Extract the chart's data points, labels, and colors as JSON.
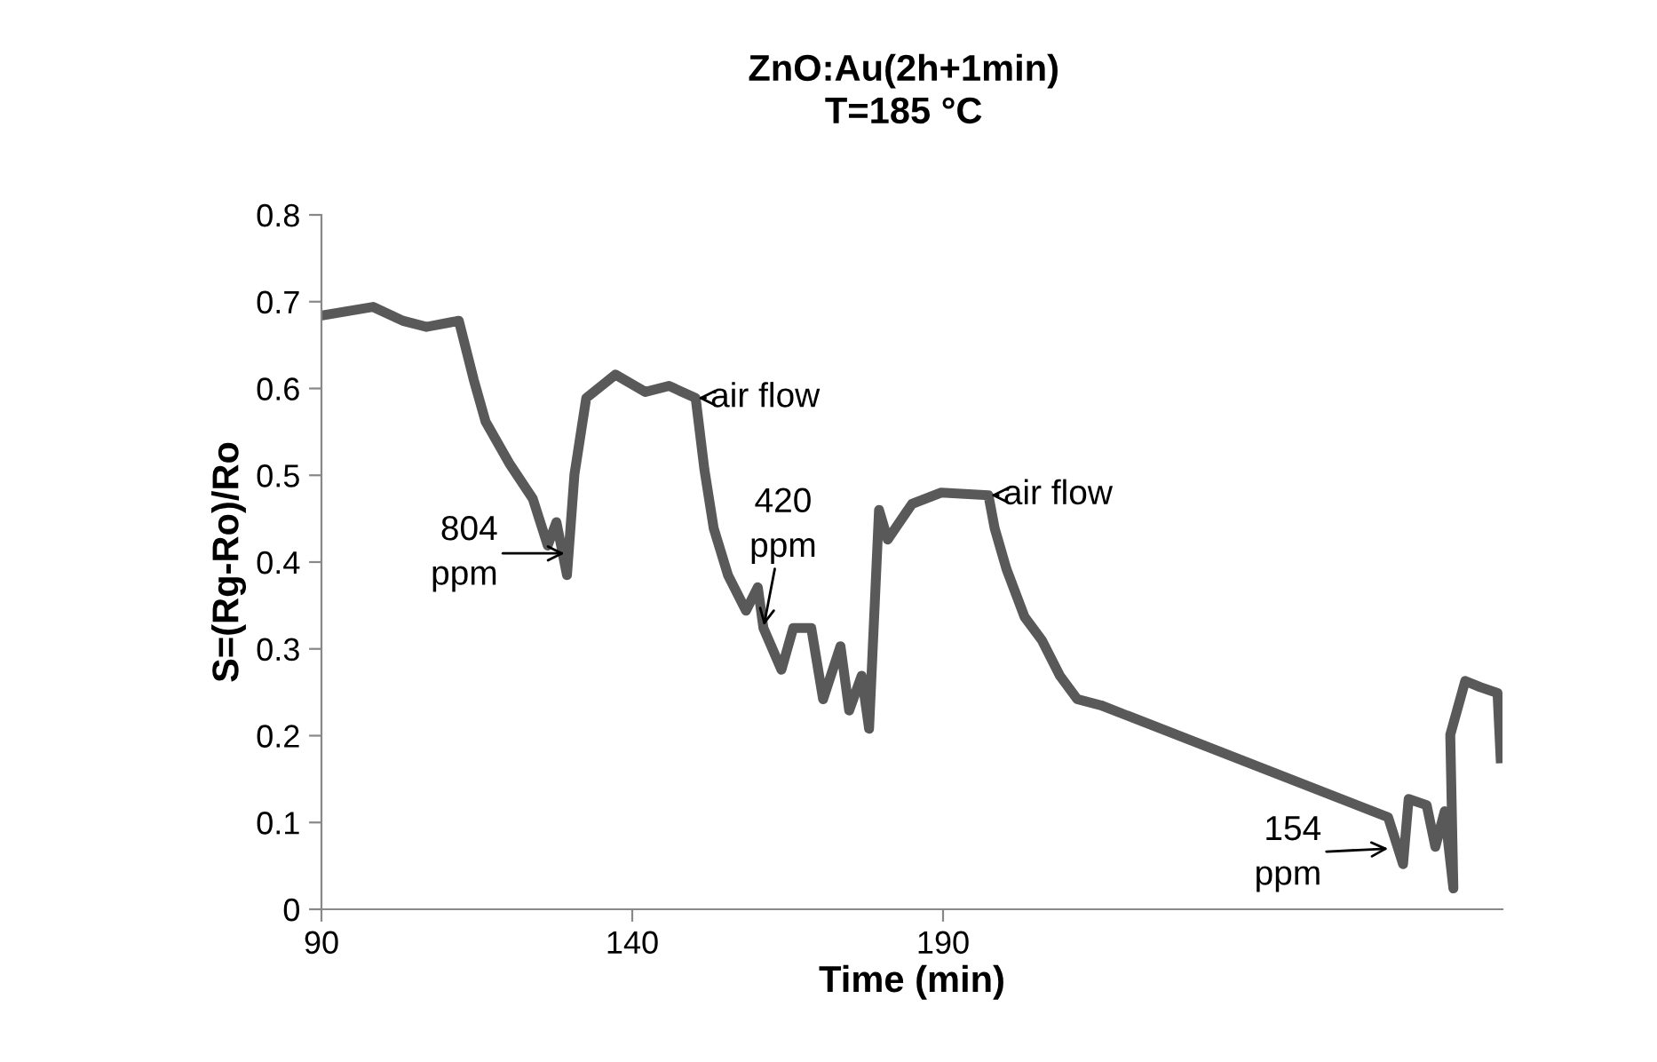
{
  "chart_data": {
    "type": "line",
    "title": "ZnO:Au(2h+1min)\nT=185 °C",
    "xlabel": "Time (min)",
    "ylabel": "S=(Rg-Ro)/Ro",
    "x": [
      90,
      98.3,
      103.1,
      106.9,
      112.1,
      114.5,
      116.4,
      120.2,
      124,
      126.4,
      127.8,
      129.5,
      130.7,
      132.6,
      137.3,
      142.1,
      145.9,
      150.2,
      151.6,
      153.1,
      155.4,
      158.3,
      160.2,
      161.1,
      164,
      165.9,
      168.8,
      170.7,
      173.5,
      174.9,
      176.9,
      178.1,
      179.7,
      181.1,
      185,
      189.7,
      197.3,
      198.3,
      200.2,
      203.1,
      205.9,
      208.8,
      211.6,
      215.4,
      261.6,
      264,
      264.9,
      267.8,
      269.2,
      270.7,
      272.1,
      271.6,
      274,
      276.4,
      279.2,
      279.7
    ],
    "values": [
      0.684,
      0.694,
      0.678,
      0.671,
      0.678,
      0.61,
      0.562,
      0.514,
      0.473,
      0.419,
      0.446,
      0.385,
      0.501,
      0.589,
      0.616,
      0.596,
      0.603,
      0.589,
      0.507,
      0.439,
      0.385,
      0.344,
      0.371,
      0.324,
      0.276,
      0.324,
      0.324,
      0.242,
      0.303,
      0.229,
      0.269,
      0.208,
      0.46,
      0.426,
      0.467,
      0.48,
      0.477,
      0.439,
      0.392,
      0.337,
      0.31,
      0.269,
      0.242,
      0.235,
      0.106,
      0.052,
      0.127,
      0.12,
      0.072,
      0.113,
      0.024,
      0.201,
      0.263,
      0.256,
      0.249,
      0.174
    ],
    "color": "#595959",
    "xlim": [
      90,
      280
    ],
    "xticks": [
      90,
      140,
      190
    ],
    "ylim": [
      0,
      0.8
    ],
    "yticks": [
      0,
      0.1,
      0.2,
      0.3,
      0.4,
      0.5,
      0.6,
      0.7,
      0.8
    ],
    "grid": false,
    "legend": false,
    "marker": "none",
    "line_style": "solid",
    "annotations": [
      {
        "text": "804\nppm",
        "x": 129.5,
        "y": 0.41
      },
      {
        "text": "air flow",
        "x": 150.2,
        "y": 0.589
      },
      {
        "text": "420\nppm",
        "x": 161.1,
        "y": 0.324
      },
      {
        "text": "air flow",
        "x": 197.3,
        "y": 0.477
      },
      {
        "text": "154\nppm",
        "x": 262,
        "y": 0.07
      }
    ]
  }
}
